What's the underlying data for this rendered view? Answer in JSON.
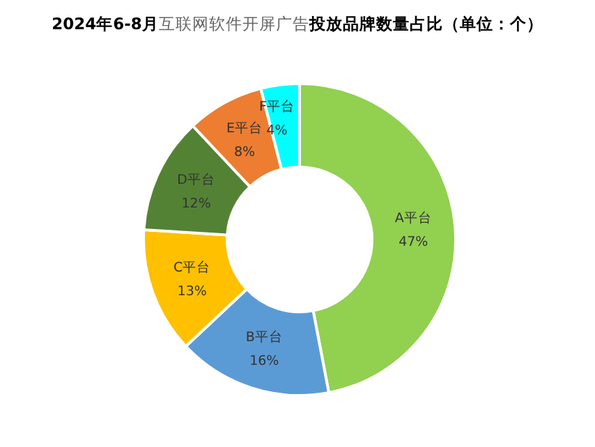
{
  "chart_data": {
    "type": "donut",
    "title": "**2024年6-8月**互联网软件开屏广告**投放品牌数量占比（单位：个）**",
    "categories": [
      "A平台",
      "B平台",
      "C平台",
      "D平台",
      "E平台",
      "F平台"
    ],
    "values": [
      47,
      16,
      13,
      12,
      8,
      4
    ],
    "value_labels": [
      "47%",
      "16%",
      "13%",
      "12%",
      "8%",
      "4%"
    ],
    "colors": [
      "#92d050",
      "#5b9bd5",
      "#ffc000",
      "#548235",
      "#ed7d31",
      "#00ffff"
    ]
  }
}
